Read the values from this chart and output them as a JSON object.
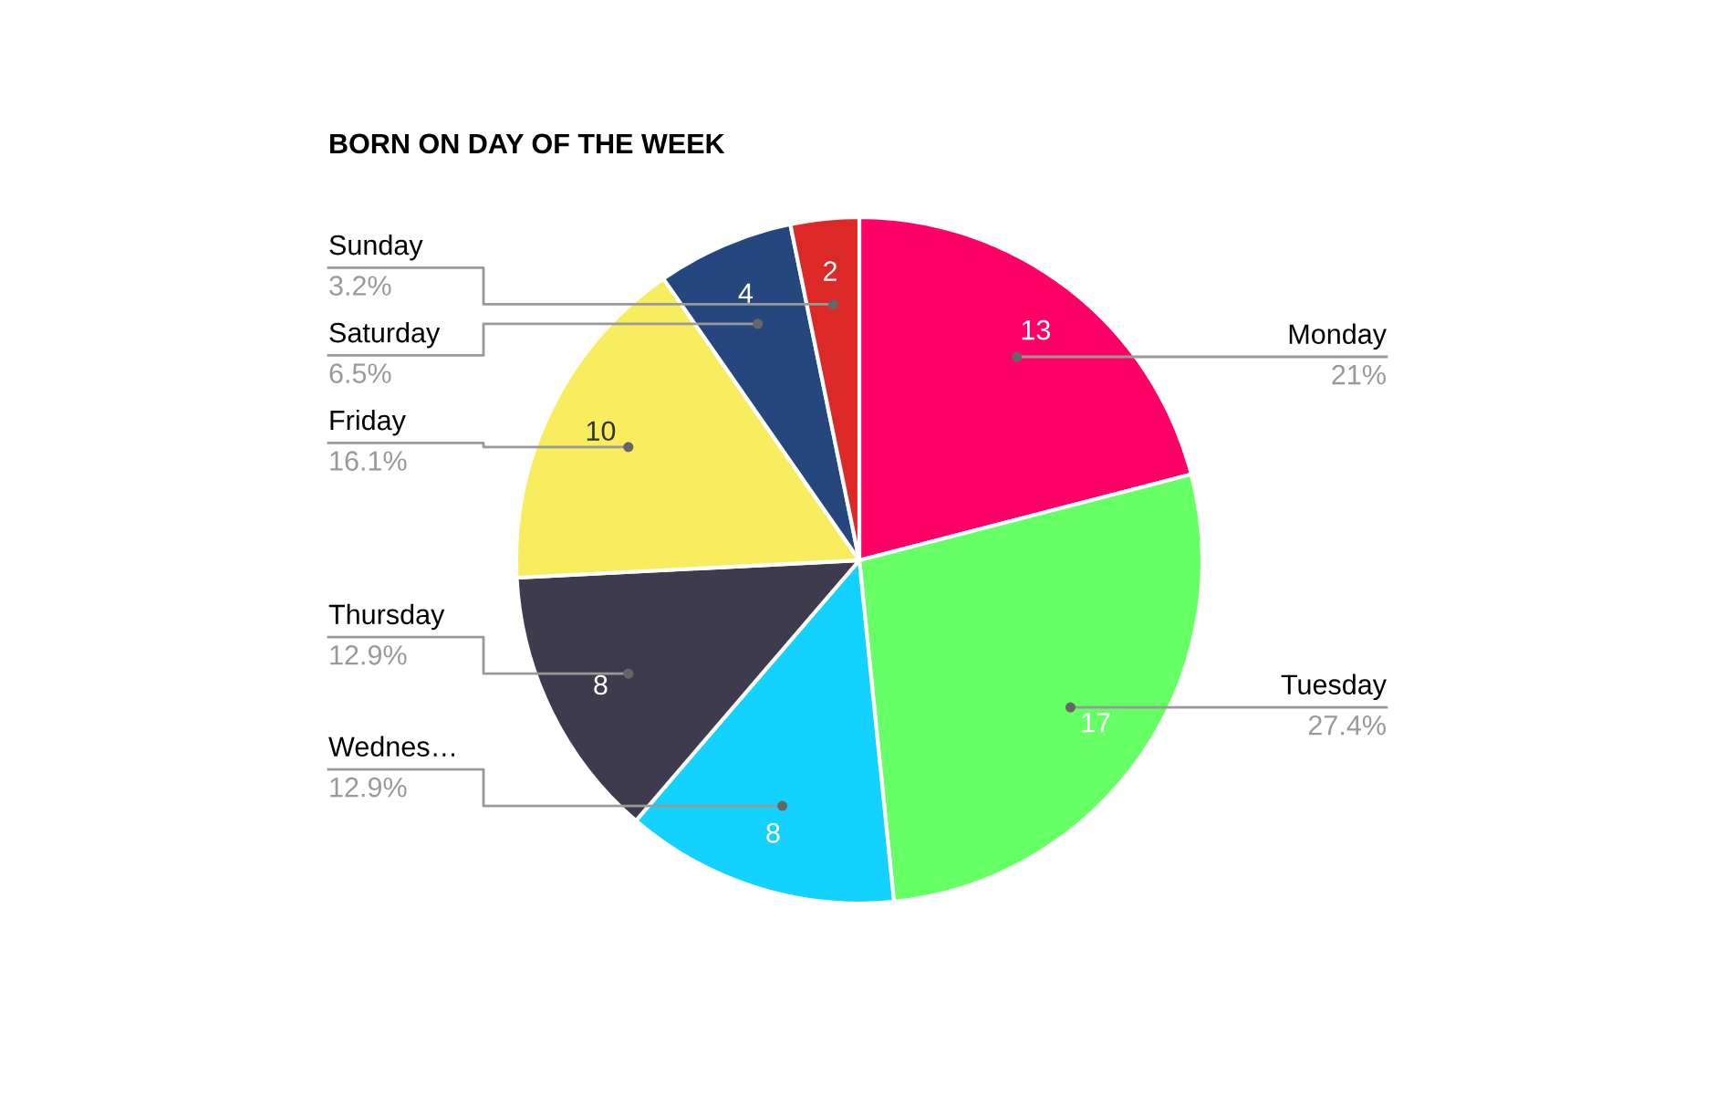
{
  "chart_data": {
    "type": "pie",
    "title": "BORN ON DAY OF THE WEEK",
    "categories": [
      "Monday",
      "Tuesday",
      "Wednes…",
      "Thursday",
      "Friday",
      "Saturday",
      "Sunday"
    ],
    "values": [
      13,
      17,
      8,
      8,
      10,
      4,
      2
    ],
    "colors": [
      "#ff0066",
      "#66ff66",
      "#14d2ff",
      "#3f3b4f",
      "#f7ed5e",
      "#26477d",
      "#dd2828"
    ],
    "data_labels": true,
    "legend": false,
    "annotations": [
      "21%",
      "27.4%",
      "12.9%",
      "12.9%",
      "16.1%",
      "6.5%",
      "3.2%"
    ]
  }
}
